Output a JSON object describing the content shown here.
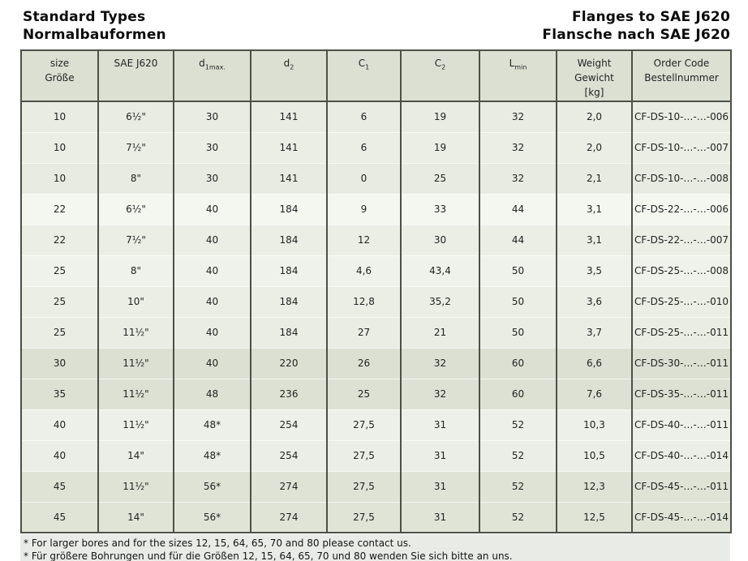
{
  "header": {
    "left": [
      "Standard Types",
      "Normalbauformen"
    ],
    "right": [
      "Flanges to SAE J620",
      "Flansche nach SAE J620"
    ]
  },
  "table": {
    "border_color": "#4c5147",
    "header_bg": "#dbe0d3",
    "footnote_bg": "#e9ece6",
    "columns": [
      {
        "key": "size",
        "header": {
          "type": "lines",
          "lines": [
            "size",
            "Größe"
          ]
        }
      },
      {
        "key": "sae",
        "header": {
          "type": "lines",
          "lines": [
            "SAE J620"
          ]
        }
      },
      {
        "key": "d1",
        "header": {
          "type": "sub",
          "main": "d",
          "sub": "1max."
        }
      },
      {
        "key": "d2",
        "header": {
          "type": "sub",
          "main": "d",
          "sub": "2"
        }
      },
      {
        "key": "c1",
        "header": {
          "type": "sub",
          "main": "C",
          "sub": "1"
        }
      },
      {
        "key": "c2",
        "header": {
          "type": "sub",
          "main": "C",
          "sub": "2"
        }
      },
      {
        "key": "lmin",
        "header": {
          "type": "sub",
          "main": "L",
          "sub": "min"
        }
      },
      {
        "key": "weight",
        "header": {
          "type": "lines",
          "lines": [
            "Weight",
            "Gewicht",
            "[kg]"
          ]
        }
      },
      {
        "key": "code",
        "header": {
          "type": "lines",
          "lines": [
            "Order Code",
            "Bestellnummer"
          ]
        }
      }
    ],
    "rows": [
      {
        "size": "10",
        "sae": "6½\"",
        "d1": "30",
        "d2": "141",
        "c1": "6",
        "c2": "19",
        "lmin": "32",
        "weight": "2,0",
        "code": "CF-DS-10-…-…-006",
        "bg": "#e8ece2"
      },
      {
        "size": "10",
        "sae": "7½\"",
        "d1": "30",
        "d2": "141",
        "c1": "6",
        "c2": "19",
        "lmin": "32",
        "weight": "2,0",
        "code": "CF-DS-10-…-…-007",
        "bg": "#ebeee5"
      },
      {
        "size": "10",
        "sae": "8\"",
        "d1": "30",
        "d2": "141",
        "c1": "0",
        "c2": "25",
        "lmin": "32",
        "weight": "2,1",
        "code": "CF-DS-10-…-…-008",
        "bg": "#e7ebe1"
      },
      {
        "size": "22",
        "sae": "6½\"",
        "d1": "40",
        "d2": "184",
        "c1": "9",
        "c2": "33",
        "lmin": "44",
        "weight": "3,1",
        "code": "CF-DS-22-…-…-006",
        "bg": "#f4f6f0"
      },
      {
        "size": "22",
        "sae": "7½\"",
        "d1": "40",
        "d2": "184",
        "c1": "12",
        "c2": "30",
        "lmin": "44",
        "weight": "3,1",
        "code": "CF-DS-22-…-…-007",
        "bg": "#ebeee5"
      },
      {
        "size": "25",
        "sae": "8\"",
        "d1": "40",
        "d2": "184",
        "c1": "4,6",
        "c2": "43,4",
        "lmin": "50",
        "weight": "3,5",
        "code": "CF-DS-25-…-…-008",
        "bg": "#eff2ea"
      },
      {
        "size": "25",
        "sae": "10\"",
        "d1": "40",
        "d2": "184",
        "c1": "12,8",
        "c2": "35,2",
        "lmin": "50",
        "weight": "3,6",
        "code": "CF-DS-25-…-…-010",
        "bg": "#eaeee4"
      },
      {
        "size": "25",
        "sae": "11½\"",
        "d1": "40",
        "d2": "184",
        "c1": "27",
        "c2": "21",
        "lmin": "50",
        "weight": "3,7",
        "code": "CF-DS-25-…-…-011",
        "bg": "#e9ede3"
      },
      {
        "size": "30",
        "sae": "11½\"",
        "d1": "40",
        "d2": "220",
        "c1": "26",
        "c2": "32",
        "lmin": "60",
        "weight": "6,6",
        "code": "CF-DS-30-…-…-011",
        "bg": "#dbe0d2"
      },
      {
        "size": "35",
        "sae": "11½\"",
        "d1": "48",
        "d2": "236",
        "c1": "25",
        "c2": "32",
        "lmin": "60",
        "weight": "7,6",
        "code": "CF-DS-35-…-…-011",
        "bg": "#dce1d3"
      },
      {
        "size": "40",
        "sae": "11½\"",
        "d1": "48*",
        "d2": "254",
        "c1": "27,5",
        "c2": "31",
        "lmin": "52",
        "weight": "10,3",
        "code": "CF-DS-40-…-…-011",
        "bg": "#edf0e8"
      },
      {
        "size": "40",
        "sae": "14\"",
        "d1": "48*",
        "d2": "254",
        "c1": "27,5",
        "c2": "31",
        "lmin": "52",
        "weight": "10,5",
        "code": "CF-DS-40-…-…-014",
        "bg": "#ebeee6"
      },
      {
        "size": "45",
        "sae": "11½\"",
        "d1": "56*",
        "d2": "274",
        "c1": "27,5",
        "c2": "31",
        "lmin": "52",
        "weight": "12,3",
        "code": "CF-DS-45-…-…-011",
        "bg": "#dee3d5"
      },
      {
        "size": "45",
        "sae": "14\"",
        "d1": "56*",
        "d2": "274",
        "c1": "27,5",
        "c2": "31",
        "lmin": "52",
        "weight": "12,5",
        "code": "CF-DS-45-…-…-014",
        "bg": "#dfe4d7"
      }
    ]
  },
  "footnotes": [
    "* For larger bores and for the sizes 12, 15, 64, 65, 70 and 80 please contact us.",
    "* Für größere Bohrungen und für die Größen 12, 15, 64, 65, 70 und 80 wenden Sie sich bitte an uns."
  ]
}
